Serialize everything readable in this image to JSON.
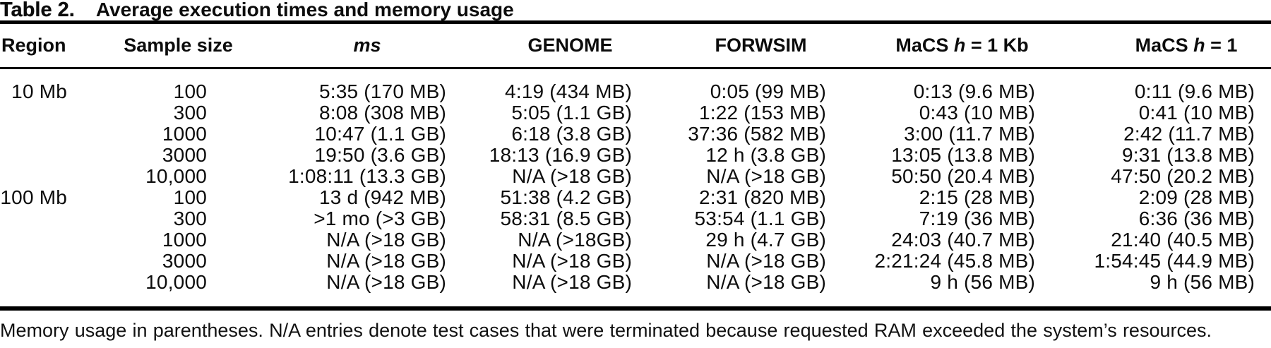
{
  "colors": {
    "background": "#ffffff",
    "text": "#0c0c0c",
    "rule": "#000000"
  },
  "table": {
    "caption": {
      "label": "Table 2.",
      "text": "Average execution times and memory usage"
    },
    "header": {
      "region": "Region",
      "sample_size": "Sample size",
      "ms": "ms",
      "genome": "GENOME",
      "forwsim": "FORWSIM",
      "macs_kb": {
        "name": "MaCS",
        "var": "h",
        "suffix": "= 1 Kb"
      },
      "macs_1": {
        "name": "MaCS",
        "var": "h",
        "suffix": "= 1"
      }
    },
    "rows": [
      {
        "region": "10 Mb",
        "sample": "100",
        "ms": "5:35 (170 MB)",
        "genome": "4:19 (434 MB)",
        "forwsim": "0:05 (99 MB)",
        "macs_kb": "0:13 (9.6 MB)",
        "macs_1": "0:11 (9.6 MB)"
      },
      {
        "region": "",
        "sample": "300",
        "ms": "8:08 (308 MB)",
        "genome": "5:05 (1.1 GB)",
        "forwsim": "1:22 (153 MB)",
        "macs_kb": "0:43 (10 MB)",
        "macs_1": "0:41 (10 MB)"
      },
      {
        "region": "",
        "sample": "1000",
        "ms": "10:47 (1.1 GB)",
        "genome": "6:18 (3.8 GB)",
        "forwsim": "37:36 (582 MB)",
        "macs_kb": "3:00 (11.7 MB)",
        "macs_1": "2:42 (11.7 MB)"
      },
      {
        "region": "",
        "sample": "3000",
        "ms": "19:50 (3.6 GB)",
        "genome": "18:13 (16.9 GB)",
        "forwsim": "12 h (3.8 GB)",
        "macs_kb": "13:05 (13.8 MB)",
        "macs_1": "9:31 (13.8 MB)"
      },
      {
        "region": "",
        "sample": "10,000",
        "ms": "1:08:11 (13.3 GB)",
        "genome": "N/A (>18 GB)",
        "forwsim": "N/A (>18 GB)",
        "macs_kb": "50:50 (20.4 MB)",
        "macs_1": "47:50 (20.2 MB)"
      },
      {
        "region": "100 Mb",
        "sample": "100",
        "ms": "13 d (942 MB)",
        "genome": "51:38 (4.2 GB)",
        "forwsim": "2:31 (820 MB)",
        "macs_kb": "2:15 (28 MB)",
        "macs_1": "2:09 (28 MB)"
      },
      {
        "region": "",
        "sample": "300",
        "ms": ">1 mo (>3 GB)",
        "genome": "58:31 (8.5 GB)",
        "forwsim": "53:54 (1.1 GB)",
        "macs_kb": "7:19 (36 MB)",
        "macs_1": "6:36 (36 MB)"
      },
      {
        "region": "",
        "sample": "1000",
        "ms": "N/A (>18 GB)",
        "genome": "N/A (>18GB)",
        "forwsim": "29 h (4.7 GB)",
        "macs_kb": "24:03 (40.7 MB)",
        "macs_1": "21:40 (40.5 MB)"
      },
      {
        "region": "",
        "sample": "3000",
        "ms": "N/A (>18 GB)",
        "genome": "N/A (>18 GB)",
        "forwsim": "N/A (>18 GB)",
        "macs_kb": "2:21:24 (45.8 MB)",
        "macs_1": "1:54:45 (44.9 MB)"
      },
      {
        "region": "",
        "sample": "10,000",
        "ms": "N/A (>18 GB)",
        "genome": "N/A (>18 GB)",
        "forwsim": "N/A (>18 GB)",
        "macs_kb": "9 h (56 MB)",
        "macs_1": "9 h (56 MB)"
      }
    ],
    "footnote": "Memory usage in parentheses. N/A entries denote test cases that were terminated because requested RAM exceeded the system’s resources."
  }
}
